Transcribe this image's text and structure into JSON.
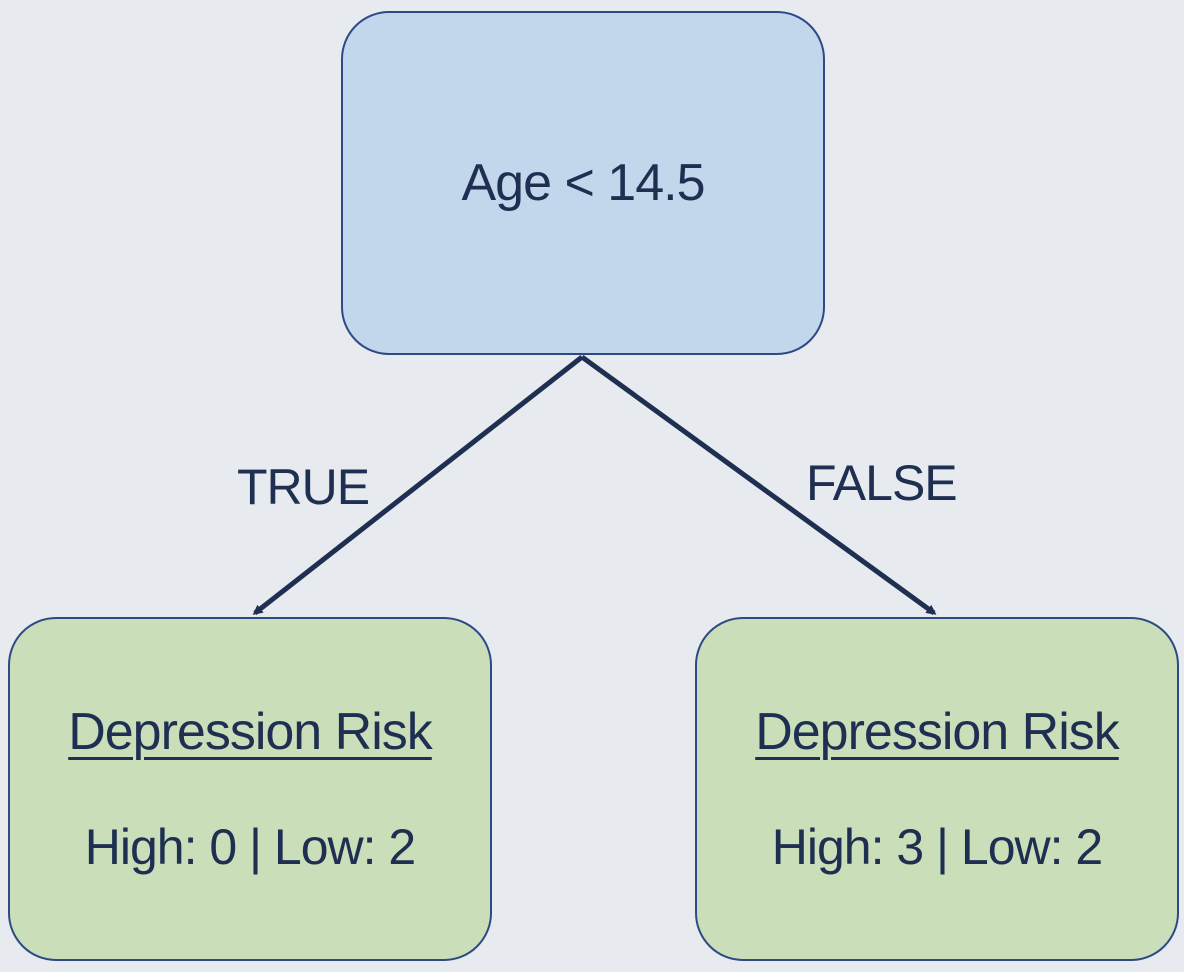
{
  "root": {
    "label": "Age < 14.5"
  },
  "edges": {
    "true_label": "TRUE",
    "false_label": "FALSE"
  },
  "leaves": [
    {
      "title": "Depression Risk",
      "counts": "High: 0 | Low: 2"
    },
    {
      "title": "Depression Risk",
      "counts": "High: 3 | Low: 2"
    }
  ],
  "colors": {
    "background": "#e7ebef",
    "root_fill": "#c2d7ec",
    "leaf_fill": "#cadfb9",
    "stroke": "#2e4a84",
    "text": "#1e2f52"
  }
}
